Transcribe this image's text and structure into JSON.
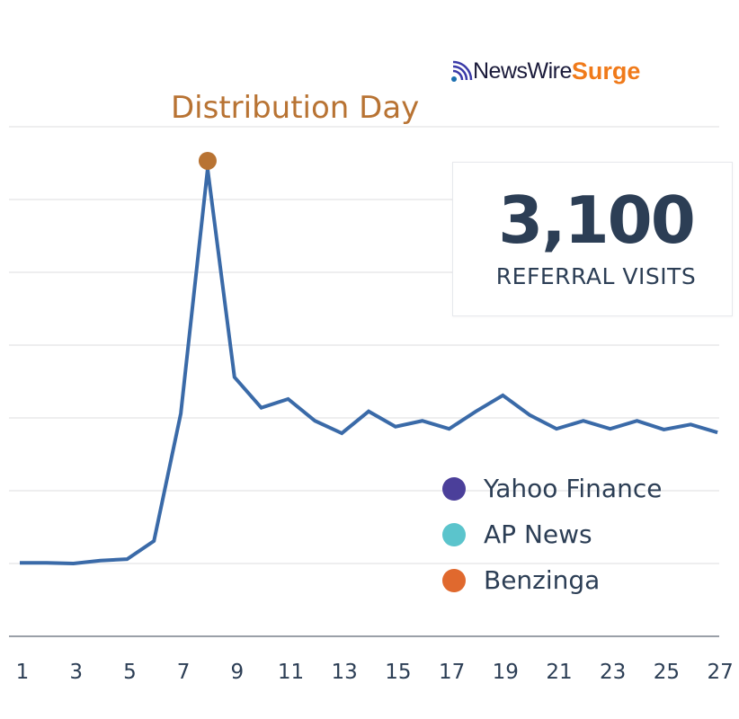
{
  "brand": {
    "logo_part1": "NewsWire",
    "logo_part2": "Surge"
  },
  "stat_card": {
    "value": "3,100",
    "label": "REFERRAL VISITS"
  },
  "chart_data": {
    "type": "line",
    "title": "",
    "xlabel": "",
    "ylabel": "",
    "x": [
      1,
      2,
      3,
      4,
      5,
      6,
      7,
      8,
      9,
      10,
      11,
      12,
      13,
      14,
      15,
      16,
      17,
      18,
      19,
      20,
      21,
      22,
      23,
      24,
      25,
      26,
      27
    ],
    "series": [
      {
        "values": [
          1.01,
          1.01,
          1.0,
          1.04,
          1.06,
          1.31,
          3.06,
          6.42,
          3.56,
          3.14,
          3.26,
          2.96,
          2.79,
          3.09,
          2.88,
          2.96,
          2.85,
          3.09,
          3.31,
          3.04,
          2.85,
          2.96,
          2.85,
          2.96,
          2.84,
          2.91,
          2.8
        ],
        "color": "#3a6aa8"
      }
    ],
    "xticks": [
      "1",
      "3",
      "5",
      "7",
      "9",
      "11",
      "13",
      "15",
      "17",
      "19",
      "21",
      "23",
      "25",
      "27"
    ],
    "ylim": [
      0,
      7
    ],
    "grid": true,
    "y_tick_labels_shown": false,
    "annotation": {
      "text": "Distribution Day",
      "x": 8,
      "color": "#b87333"
    },
    "legend": {
      "placement": "bottom-right",
      "entries": [
        {
          "label": "Yahoo Finance",
          "color": "#4b3f9a"
        },
        {
          "label": "AP News",
          "color": "#5bc4cc"
        },
        {
          "label": "Benzinga",
          "color": "#e0692e"
        }
      ]
    }
  }
}
